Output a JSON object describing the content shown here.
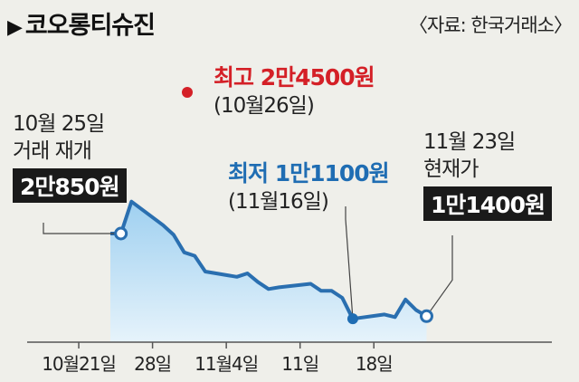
{
  "title": "코오롱티슈진",
  "title_marker": "▶",
  "source": "〈자료: 한국거래소〉",
  "annotations": {
    "start": {
      "line1": "10월 25일",
      "line2": "거래 재개",
      "value": "2만850원"
    },
    "high": {
      "label": "최고 2만4500원",
      "date": "(10월26일)"
    },
    "low": {
      "label": "최저 1만1100원",
      "date": "(11월16일)"
    },
    "current": {
      "line1": "11월 23일",
      "line2": "현재가",
      "value": "1만1400원"
    }
  },
  "colors": {
    "high": "#d42027",
    "low": "#1f6db3",
    "line": "#2a6fb0",
    "fill_top": "#9fd0f0",
    "fill_bottom": "#e6f3fb"
  },
  "chart_data": {
    "type": "area",
    "x": [
      "10-24",
      "10-25",
      "10-26",
      "10-29",
      "10-30",
      "10-31",
      "11-01",
      "11-02",
      "11-05",
      "11-06",
      "11-07",
      "11-08",
      "11-09",
      "11-12",
      "11-13",
      "11-14",
      "11-15",
      "11-16",
      "11-19",
      "11-20",
      "11-21",
      "11-22",
      "11-23"
    ],
    "values": [
      20850,
      20850,
      24500,
      21800,
      20700,
      18700,
      18300,
      16500,
      15900,
      16300,
      15300,
      14500,
      14700,
      15100,
      14300,
      14300,
      13500,
      11100,
      11600,
      11300,
      13300,
      12100,
      11400
    ],
    "xticks": [
      {
        "x": "10-21",
        "label": "10월21일"
      },
      {
        "x": "10-28",
        "label": "28일"
      },
      {
        "x": "11-04",
        "label": "11월4일"
      },
      {
        "x": "11-11",
        "label": "11일"
      },
      {
        "x": "11-18",
        "label": "18일"
      }
    ],
    "markers": {
      "start": "10-25",
      "high": "10-26",
      "low": "11-16",
      "current": "11-23"
    }
  }
}
